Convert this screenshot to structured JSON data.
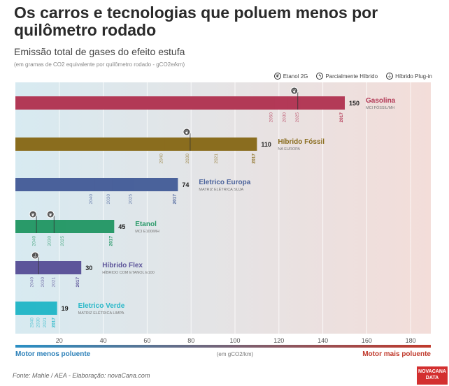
{
  "header": {
    "title": "Os carros e tecnologias que poluem menos por quilômetro rodado",
    "subtitle": "Emissão total de gases do efeito estufa",
    "note": "(em gramas de CO2 equivalente por quilômetro rodado - gCO2e/km)"
  },
  "legend": {
    "items": [
      {
        "label": "Etanol 2G",
        "icon": "leaf-icon"
      },
      {
        "label": "Parcialmente Híbrido",
        "icon": "bolt-icon"
      },
      {
        "label": "Híbrido Plug-in",
        "icon": "plug-icon"
      }
    ]
  },
  "chart_data": {
    "type": "bar",
    "x_axis": {
      "min": 0,
      "max": 190,
      "ticks": [
        20,
        40,
        60,
        80,
        100,
        120,
        140,
        160,
        180
      ],
      "label": "(em gCO2/km)"
    },
    "scale_left_label": "Motor menos poluente",
    "scale_right_label": "Motor mais poluente",
    "series": [
      {
        "name": "Gasolina",
        "sub": "MCI FÓSSIL/MH",
        "value": 150,
        "color": "#b33a57",
        "years": [
          {
            "year": "2017",
            "value": 150
          },
          {
            "year": "2025",
            "value": 130
          },
          {
            "year": "2030",
            "value": 124
          },
          {
            "year": "2050",
            "value": 118
          }
        ],
        "icons": [
          {
            "value": 127,
            "icon": "leaf-icon"
          }
        ]
      },
      {
        "name": "Híbrido Fóssil",
        "sub": "NA EUROPA",
        "value": 110,
        "color": "#8a6d1f",
        "years": [
          {
            "year": "2017",
            "value": 110
          },
          {
            "year": "2021",
            "value": 93
          },
          {
            "year": "2030",
            "value": 80
          },
          {
            "year": "2040",
            "value": 68
          }
        ],
        "icons": [
          {
            "value": 78,
            "icon": "leaf-icon"
          }
        ]
      },
      {
        "name": "Eletrico Europa",
        "sub": "MATRIZ ELÉTRICA SUJA",
        "value": 74,
        "color": "#4a629b",
        "years": [
          {
            "year": "2017",
            "value": 74
          },
          {
            "year": "2025",
            "value": 54
          },
          {
            "year": "2030",
            "value": 44
          },
          {
            "year": "2040",
            "value": 36
          }
        ],
        "icons": []
      },
      {
        "name": "Etanol",
        "sub": "MCI E100/MH",
        "value": 45,
        "color": "#2a9a6a",
        "years": [
          {
            "year": "2017",
            "value": 45
          },
          {
            "year": "2025",
            "value": 23
          },
          {
            "year": "2030",
            "value": 17
          },
          {
            "year": "2040",
            "value": 10
          }
        ],
        "icons": [
          {
            "value": 8,
            "icon": "leaf-icon"
          },
          {
            "value": 16,
            "icon": "leaf-icon"
          }
        ]
      },
      {
        "name": "Híbrido Flex",
        "sub": "HÍBRIDO COM ETANOL E100",
        "value": 30,
        "color": "#5d559a",
        "years": [
          {
            "year": "2017",
            "value": 30
          },
          {
            "year": "2021",
            "value": 19
          },
          {
            "year": "2030",
            "value": 14
          },
          {
            "year": "2040",
            "value": 9
          }
        ],
        "icons": [
          {
            "value": 9,
            "icon": "plug-icon"
          }
        ]
      },
      {
        "name": "Eletrico Verde",
        "sub": "MATRIZ ELÉTRICA LIMPA",
        "value": 19,
        "color": "#29b8c8",
        "years": [
          {
            "year": "2017",
            "value": 19
          },
          {
            "year": "2021",
            "value": 15
          },
          {
            "year": "2030",
            "value": 12
          },
          {
            "year": "2040",
            "value": 9
          }
        ],
        "icons": []
      }
    ]
  },
  "footer": {
    "source": "Fonte: Mahle / AEA - Elaboração: novaCana.com",
    "logo_line1": "NOVACANA",
    "logo_line2": "DATA"
  }
}
